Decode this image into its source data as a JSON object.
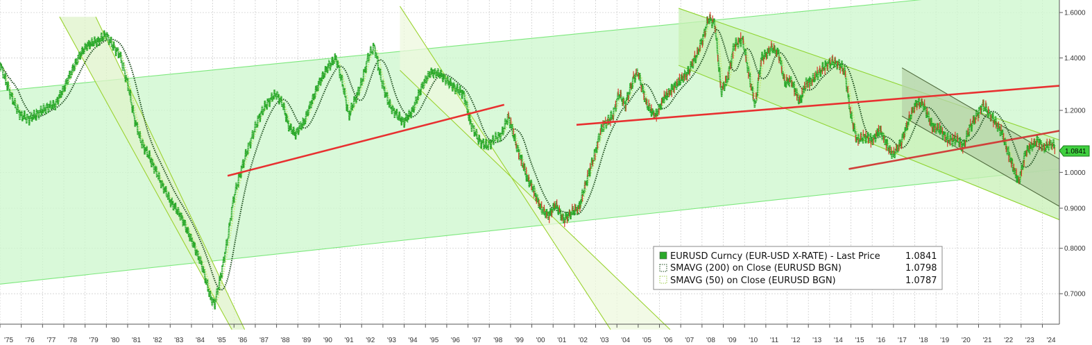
{
  "chart_data": {
    "type": "line",
    "title": "",
    "x_axis": {
      "range": [
        1975.0,
        2024.8
      ],
      "tick_labels": [
        "'75",
        "'76",
        "'77",
        "'78",
        "'79",
        "'80",
        "'81",
        "'82",
        "'83",
        "'84",
        "'85",
        "'86",
        "'87",
        "'88",
        "'89",
        "'90",
        "'91",
        "'92",
        "'93",
        "'94",
        "'95",
        "'96",
        "'97",
        "'98",
        "'99",
        "'00",
        "'01",
        "'02",
        "'03",
        "'04",
        "'05",
        "'06",
        "'07",
        "'08",
        "'09",
        "'10",
        "'11",
        "'12",
        "'13",
        "'14",
        "'15",
        "'16",
        "'17",
        "'18",
        "'19",
        "'20",
        "'21",
        "'22",
        "'23",
        "'24"
      ]
    },
    "y_axis": {
      "scale": "log",
      "range": [
        0.64,
        1.66
      ],
      "side": "right",
      "tick_labels": [
        "0.7000",
        "0.8000",
        "0.9000",
        "1.0000",
        "1.2000",
        "1.4000",
        "1.6000"
      ],
      "tick_values": [
        0.7,
        0.8,
        0.9,
        1.0,
        1.2,
        1.4,
        1.6
      ]
    },
    "grid": true,
    "series": [
      {
        "name": "EURUSD Curncy (EUR-USD X-RATE) - Last Price",
        "last_value": "1.0841",
        "color": "#2aa82a",
        "x": [
          1975.0,
          1975.3,
          1975.7,
          1976.0,
          1976.4,
          1976.8,
          1977.2,
          1977.6,
          1978.0,
          1978.4,
          1978.8,
          1979.2,
          1979.6,
          1980.0,
          1980.3,
          1980.6,
          1981.0,
          1981.3,
          1981.6,
          1982.0,
          1982.5,
          1983.0,
          1983.5,
          1984.0,
          1984.5,
          1984.9,
          1985.1,
          1985.4,
          1985.7,
          1986.0,
          1986.4,
          1986.8,
          1987.2,
          1987.6,
          1988.0,
          1988.3,
          1988.6,
          1988.9,
          1989.3,
          1989.6,
          1990.0,
          1990.4,
          1990.8,
          1991.1,
          1991.4,
          1991.7,
          1992.0,
          1992.3,
          1992.6,
          1992.9,
          1993.3,
          1993.7,
          1994.0,
          1994.4,
          1994.8,
          1995.2,
          1995.6,
          1996.0,
          1996.4,
          1996.8,
          1997.1,
          1997.5,
          1997.9,
          1998.2,
          1998.6,
          1998.9,
          1999.2,
          1999.5,
          1999.8,
          2000.1,
          2000.4,
          2000.8,
          2001.1,
          2001.5,
          2001.9,
          2002.2,
          2002.6,
          2002.9,
          2003.2,
          2003.5,
          2003.8,
          2004.1,
          2004.4,
          2004.8,
          2005.0,
          2005.4,
          2005.8,
          2006.2,
          2006.6,
          2007.0,
          2007.4,
          2007.8,
          2008.1,
          2008.3,
          2008.6,
          2008.9,
          2009.2,
          2009.5,
          2009.9,
          2010.2,
          2010.5,
          2010.8,
          2011.3,
          2011.6,
          2011.9,
          2012.2,
          2012.6,
          2012.9,
          2013.3,
          2013.7,
          2014.0,
          2014.4,
          2014.7,
          2015.0,
          2015.3,
          2015.7,
          2016.0,
          2016.4,
          2016.8,
          2017.0,
          2017.4,
          2017.8,
          2018.1,
          2018.4,
          2018.8,
          2019.2,
          2019.6,
          2020.0,
          2020.3,
          2020.6,
          2020.9,
          2021.2,
          2021.5,
          2021.8,
          2022.1,
          2022.4,
          2022.7,
          2022.9,
          2023.2,
          2023.5,
          2023.8,
          2024.1,
          2024.4,
          2024.6
        ],
        "y": [
          1.38,
          1.3,
          1.22,
          1.18,
          1.17,
          1.19,
          1.21,
          1.22,
          1.28,
          1.35,
          1.42,
          1.46,
          1.47,
          1.5,
          1.45,
          1.42,
          1.3,
          1.18,
          1.1,
          1.05,
          0.98,
          0.92,
          0.88,
          0.82,
          0.76,
          0.69,
          0.68,
          0.74,
          0.82,
          0.93,
          1.02,
          1.1,
          1.18,
          1.23,
          1.26,
          1.22,
          1.14,
          1.12,
          1.16,
          1.22,
          1.3,
          1.36,
          1.4,
          1.3,
          1.18,
          1.24,
          1.3,
          1.4,
          1.45,
          1.32,
          1.22,
          1.18,
          1.16,
          1.2,
          1.28,
          1.34,
          1.34,
          1.31,
          1.28,
          1.26,
          1.16,
          1.1,
          1.08,
          1.1,
          1.12,
          1.18,
          1.1,
          1.04,
          0.98,
          0.95,
          0.9,
          0.88,
          0.91,
          0.87,
          0.89,
          0.9,
          0.98,
          1.04,
          1.12,
          1.16,
          1.18,
          1.26,
          1.22,
          1.32,
          1.34,
          1.22,
          1.18,
          1.24,
          1.28,
          1.31,
          1.35,
          1.42,
          1.5,
          1.57,
          1.55,
          1.27,
          1.31,
          1.45,
          1.48,
          1.34,
          1.21,
          1.4,
          1.44,
          1.42,
          1.3,
          1.31,
          1.23,
          1.3,
          1.32,
          1.36,
          1.38,
          1.38,
          1.35,
          1.18,
          1.1,
          1.11,
          1.1,
          1.13,
          1.07,
          1.05,
          1.1,
          1.18,
          1.23,
          1.22,
          1.15,
          1.13,
          1.1,
          1.1,
          1.08,
          1.14,
          1.18,
          1.22,
          1.19,
          1.16,
          1.12,
          1.06,
          1.0,
          0.97,
          1.06,
          1.08,
          1.1,
          1.07,
          1.09,
          1.08
        ],
        "style": "scatter-dots"
      },
      {
        "name": "SMAVG (200)  on Close (EURUSD BGN)",
        "last_value": "1.0798",
        "color": "#1d4d1d",
        "style": "dotted"
      },
      {
        "name": "SMAVG (50)  on Close (EURUSD BGN)",
        "last_value": "1.0787",
        "color": "#c5e87a",
        "style": "dotted"
      }
    ],
    "trend_channels": [
      {
        "id": "long-up",
        "from": [
          1975.0,
          0.72
        ],
        "to": [
          2024.8,
          1.01
        ],
        "upper_from": [
          1975.0,
          1.27
        ],
        "upper_to": [
          2024.8,
          1.73
        ],
        "color": "#7de87d",
        "fill": "#ccf7cc"
      },
      {
        "id": "down-1979",
        "from": [
          1977.8,
          1.58
        ],
        "to": [
          1985.9,
          0.63
        ],
        "upper_from": [
          1979.5,
          1.58
        ],
        "upper_to": [
          1986.5,
          0.63
        ],
        "color": "#9ad32f",
        "fill": "#dff3c9"
      },
      {
        "id": "down-1994",
        "from": [
          1993.8,
          1.63
        ],
        "to": [
          2003.7,
          0.63
        ],
        "upper_from": [
          1993.8,
          1.35
        ],
        "upper_to": [
          2006.5,
          0.63
        ],
        "color": "#9ad32f",
        "fill": "#eef8de"
      },
      {
        "id": "down-2007",
        "from": [
          2006.9,
          1.62
        ],
        "to": [
          2024.8,
          1.1
        ],
        "lower_from": [
          2006.9,
          1.37
        ],
        "lower_to": [
          2024.8,
          0.87
        ],
        "color": "#8fd42f",
        "fill": "#c8f0b6"
      },
      {
        "id": "down-2018",
        "from": [
          2017.4,
          1.36
        ],
        "to": [
          2024.8,
          1.04
        ],
        "lower_from": [
          2017.4,
          1.18
        ],
        "lower_to": [
          2024.8,
          0.905
        ],
        "color": "#4f6a3c",
        "fill": "#b6d3a8"
      }
    ],
    "trend_lines": [
      {
        "id": "red-1986",
        "from": [
          1985.7,
          0.99
        ],
        "to": [
          1998.7,
          1.22
        ],
        "color": "#e83030"
      },
      {
        "id": "red-2002",
        "from": [
          2002.1,
          1.15
        ],
        "to": [
          2024.8,
          1.29
        ],
        "color": "#e83030"
      },
      {
        "id": "red-2015",
        "from": [
          2014.9,
          1.01
        ],
        "to": [
          2024.8,
          1.13
        ],
        "color": "#d0403a"
      }
    ],
    "legend": {
      "placement": "bottom-right",
      "entries": [
        {
          "label": "EURUSD Curncy (EUR-USD X-RATE) - Last Price",
          "value": "1.0841"
        },
        {
          "label": "SMAVG (200)  on Close (EURUSD BGN)",
          "value": "1.0798"
        },
        {
          "label": "SMAVG (50)  on Close (EURUSD BGN)",
          "value": "1.0787"
        }
      ]
    },
    "last_price_tag": "1.0841"
  }
}
